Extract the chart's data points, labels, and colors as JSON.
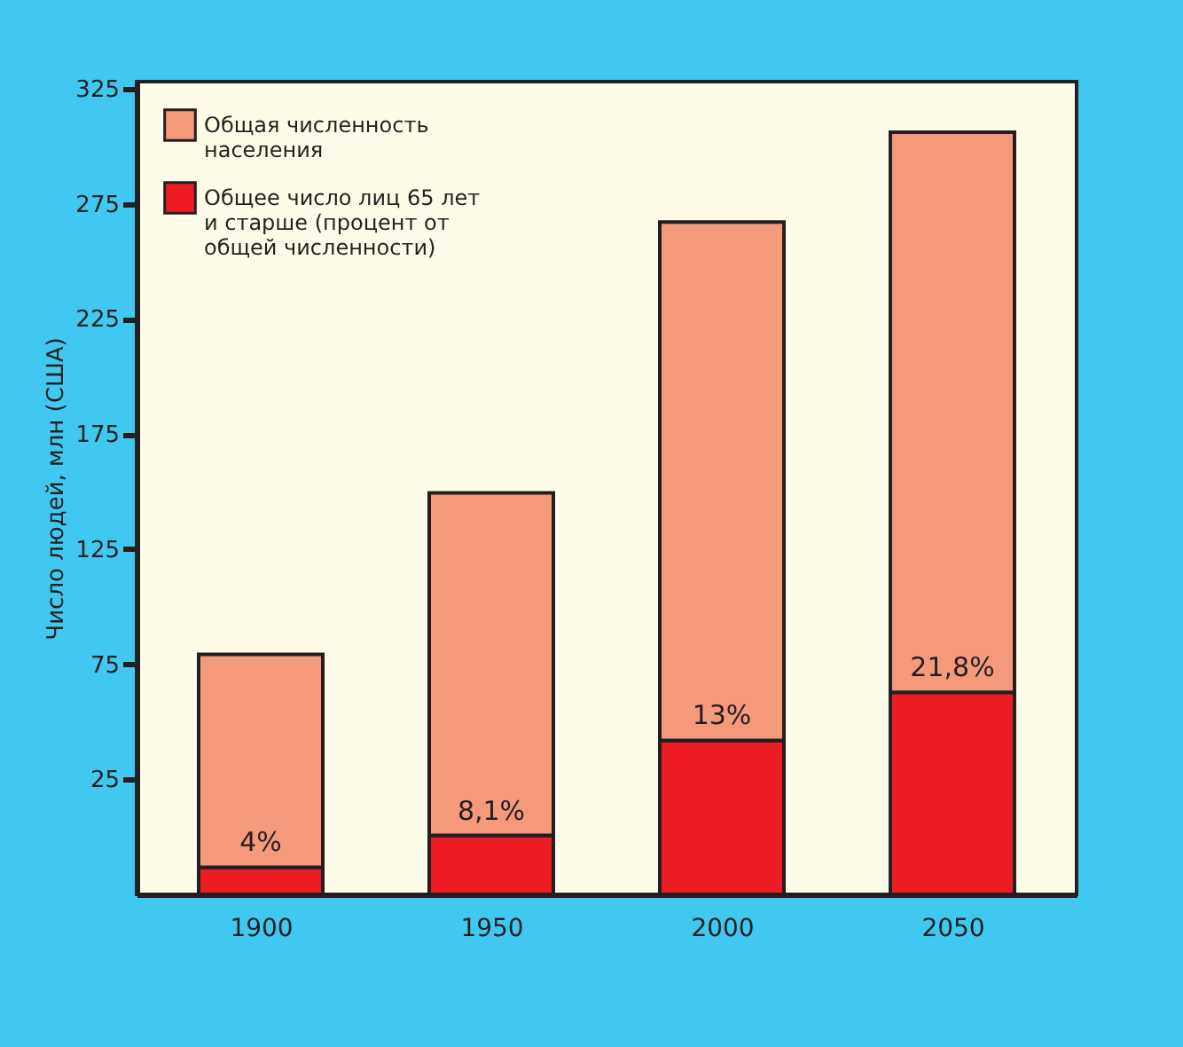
{
  "chart_data": {
    "type": "bar",
    "ylabel": "Число людей, млн (США)",
    "categories": [
      "1900",
      "1950",
      "2000",
      "2050"
    ],
    "series": [
      {
        "name": "Общее число лиц 65 лет и старше (процент от общей численности)",
        "color": "#ed1c24",
        "base": [
          -25,
          -25,
          -25,
          -25
        ],
        "values": [
          11.8,
          25.6,
          66.9,
          87.8
        ]
      },
      {
        "name": "Общая численность населения",
        "color": "#f4997a",
        "base": [
          -13.2,
          0.6,
          41.9,
          62.8
        ],
        "values": [
          92.4,
          148.8,
          225.1,
          243.2
        ]
      }
    ],
    "annotations": [
      {
        "text": "4%",
        "x": "1900",
        "y": -13.2
      },
      {
        "text": "8,1%",
        "x": "1950",
        "y": 0.6
      },
      {
        "text": "13%",
        "x": "2000",
        "y": 41.9
      },
      {
        "text": "21,8%",
        "x": "2050",
        "y": 62.8
      }
    ],
    "ylim": [
      -25,
      328
    ],
    "yticks": [
      25,
      75,
      125,
      175,
      225,
      275,
      325
    ],
    "grid": false,
    "legend": "top left"
  }
}
